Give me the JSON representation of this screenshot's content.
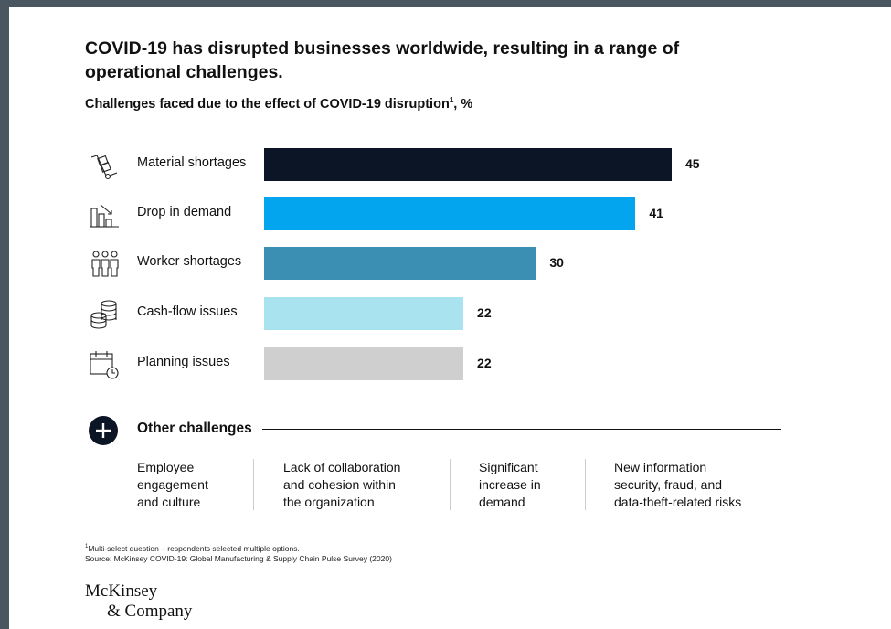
{
  "title": "COVID-19 has disrupted businesses worldwide, resulting in a range of operational challenges.",
  "subtitle": "Challenges faced due to the effect of COVID-19 disruption",
  "subtitle_sup": "1",
  "subtitle_unit": ", %",
  "chart_data": {
    "type": "bar",
    "orientation": "horizontal",
    "categories": [
      "Material shortages",
      "Drop in demand",
      "Worker shortages",
      "Cash-flow issues",
      "Planning issues"
    ],
    "values": [
      45,
      41,
      30,
      22,
      22
    ],
    "colors": [
      "#0b1525",
      "#04a5ef",
      "#3a8fb2",
      "#a8e3ef",
      "#cfcfcf"
    ],
    "icons": [
      "hand-truck-icon",
      "declining-bar-chart-icon",
      "workers-icon",
      "coin-stack-icon",
      "calendar-clock-icon"
    ],
    "title": "Challenges faced due to the effect of COVID-19 disruption",
    "unit": "%",
    "xlim": [
      0,
      45
    ],
    "grid": false,
    "legend": "none"
  },
  "other": {
    "heading": "Other challenges",
    "items": [
      [
        "Employee",
        "engagement",
        "and culture"
      ],
      [
        "Lack of collaboration",
        "and cohesion within",
        "the organization"
      ],
      [
        "Significant",
        "increase in",
        "demand"
      ],
      [
        "New information",
        "security, fraud, and",
        "data-theft-related risks"
      ]
    ]
  },
  "footnote": {
    "sup": "1",
    "line1": "Multi-select question – respondents selected multiple options.",
    "line2": "Source: McKinsey COVID-19: Global Manufacturing & Supply Chain Pulse Survey (2020)"
  },
  "logo": {
    "line1": "McKinsey",
    "line2": "& Company"
  }
}
